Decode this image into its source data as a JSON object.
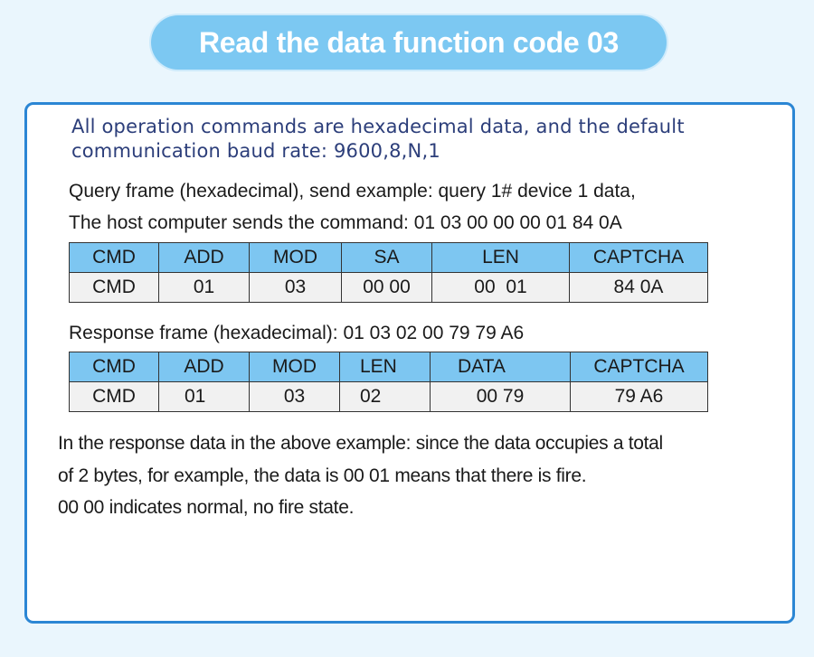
{
  "title": "Read the data function code 03",
  "intro": "All operation commands are hexadecimal data, and the default communication baud rate: 9600,8,N,1",
  "query_line_1": "Query frame (hexadecimal), send example: query 1# device 1 data,",
  "query_line_2": "The host computer sends the command: 01 03 00 00 00 01 84 0A",
  "query_table": {
    "headers": [
      "CMD",
      "ADD",
      "MOD",
      "SA",
      "LEN",
      "CAPTCHA"
    ],
    "values": [
      "CMD",
      "01",
      "03",
      "00 00",
      "00  01",
      "84 0A"
    ]
  },
  "response_line": "Response frame (hexadecimal): 01 03 02 00 79 79 A6",
  "response_table": {
    "headers": [
      "CMD",
      "ADD",
      "MOD",
      "LEN",
      "DATA",
      "CAPTCHA"
    ],
    "values": [
      "CMD",
      "01",
      "03",
      "02",
      "00 79",
      "79 A6"
    ]
  },
  "summary": [
    "In the response data in the above example: since the data occupies a total",
    "of 2 bytes, for example, the data is 00 01 means that there is fire.",
    "00 00 indicates normal, no fire state."
  ],
  "colors": {
    "background": "#eaf6fd",
    "accent": "#7dc6f1",
    "panel_border": "#2b86d4",
    "intro_text": "#2c3e7a"
  }
}
